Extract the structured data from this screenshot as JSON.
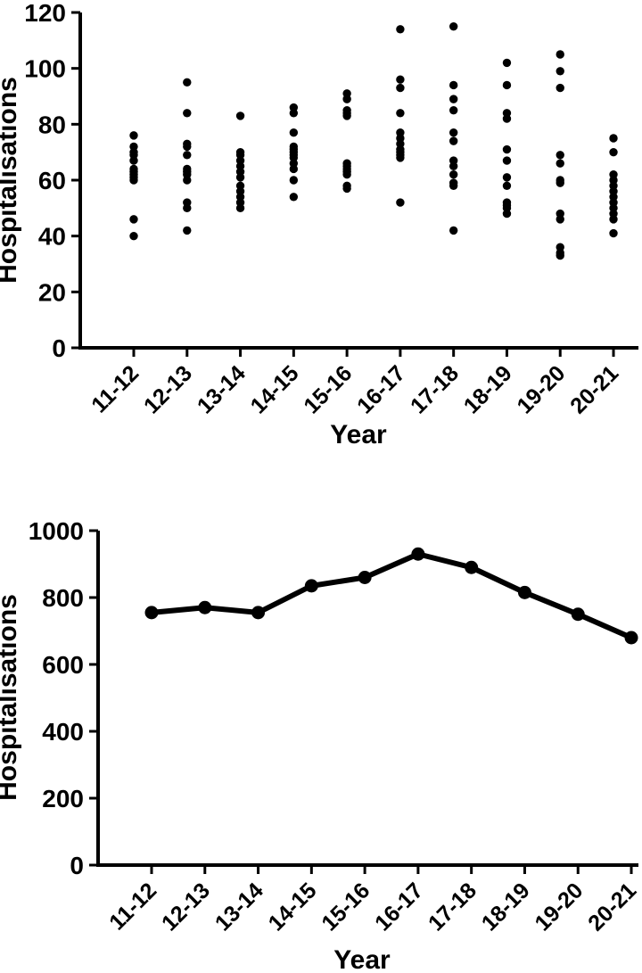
{
  "figure": {
    "background": "#ffffff",
    "ink": "#000000"
  },
  "chart_data": [
    {
      "id": "top-panel",
      "type": "scatter",
      "title": "",
      "xlabel": "Year",
      "ylabel": "Hospitalisations",
      "legend": "none",
      "grid": false,
      "categories": [
        "11-12",
        "12-13",
        "13-14",
        "14-15",
        "15-16",
        "16-17",
        "17-18",
        "18-19",
        "19-20",
        "20-21"
      ],
      "ylim": [
        0,
        120
      ],
      "yticks": [
        0,
        20,
        40,
        60,
        80,
        100,
        120
      ],
      "points_by_category": [
        [
          76,
          72,
          70,
          69,
          67,
          64,
          63,
          62,
          61,
          60,
          46,
          40
        ],
        [
          95,
          84,
          73,
          72,
          69,
          64,
          63,
          62,
          60,
          52,
          50,
          42
        ],
        [
          83,
          70,
          69,
          67,
          65,
          63,
          61,
          58,
          56,
          54,
          52,
          50
        ],
        [
          86,
          84,
          77,
          72,
          71,
          70,
          69,
          68,
          66,
          64,
          60,
          54
        ],
        [
          91,
          89,
          85,
          84,
          83,
          66,
          65,
          64,
          63,
          62,
          58,
          57
        ],
        [
          114,
          96,
          93,
          84,
          77,
          75,
          73,
          71,
          70,
          69,
          68,
          52
        ],
        [
          115,
          94,
          89,
          85,
          77,
          74,
          67,
          65,
          62,
          59,
          58,
          42
        ],
        [
          102,
          94,
          84,
          82,
          71,
          67,
          61,
          58,
          52,
          51,
          50,
          48
        ],
        [
          105,
          99,
          93,
          69,
          66,
          60,
          59,
          48,
          46,
          36,
          34,
          33
        ],
        [
          75,
          70,
          62,
          60,
          58,
          56,
          54,
          52,
          50,
          48,
          46,
          41
        ]
      ]
    },
    {
      "id": "bottom-panel",
      "type": "line",
      "title": "",
      "xlabel": "Year",
      "ylabel": "Hospitalisations",
      "legend": "none",
      "grid": false,
      "categories": [
        "11-12",
        "12-13",
        "13-14",
        "14-15",
        "15-16",
        "16-17",
        "17-18",
        "18-19",
        "19-20",
        "20-21"
      ],
      "ylim": [
        0,
        1000
      ],
      "yticks": [
        0,
        200,
        400,
        600,
        800,
        1000
      ],
      "values": [
        755,
        770,
        755,
        835,
        860,
        930,
        890,
        815,
        750,
        680
      ]
    }
  ]
}
